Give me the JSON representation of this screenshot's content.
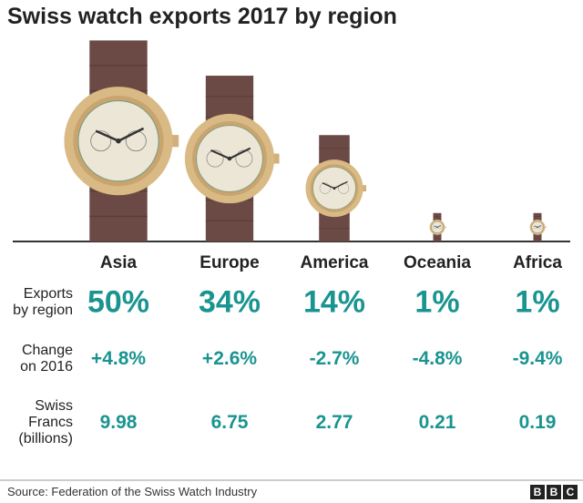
{
  "chart_data": {
    "type": "pictorial",
    "title": "Swiss watch exports 2017 by region",
    "categories": [
      "Asia",
      "Europe",
      "America",
      "Oceania",
      "Africa"
    ],
    "series": [
      {
        "name": "Exports by region",
        "color": "#1a9490",
        "values": [
          50,
          34,
          14,
          1,
          1
        ],
        "value_labels": [
          "50%",
          "34%",
          "14%",
          "1%",
          "1%"
        ]
      },
      {
        "name": "Change on 2016",
        "color": "#1a9490",
        "values": [
          4.8,
          2.6,
          -2.7,
          -4.8,
          -9.4
        ],
        "value_labels": [
          "+4.8%",
          "+2.6%",
          "-2.7%",
          "-4.8%",
          "-9.4%"
        ]
      },
      {
        "name": "Swiss Francs (billions)",
        "color": "#1a9490",
        "values": [
          9.98,
          6.75,
          2.77,
          0.21,
          0.19
        ]
      }
    ],
    "source": "Source: Federation of the Swiss Watch Industry",
    "brand": "BBC"
  }
}
